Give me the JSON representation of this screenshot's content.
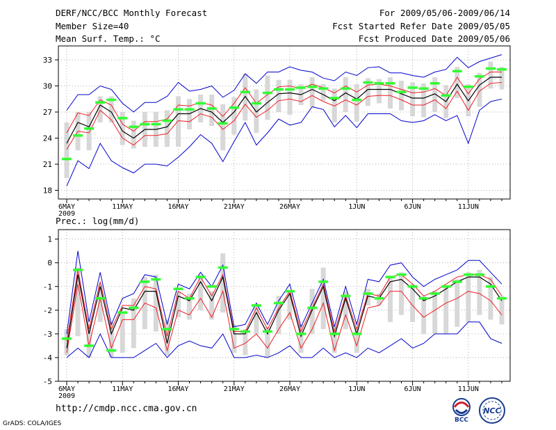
{
  "header": {
    "title": "DERF/NCC/BCC Monthly Forecast",
    "member_size": "Member Size=40",
    "variable": "Mean Surf. Temp.: °C",
    "forecast_period": "For 2009/05/06-2009/06/14",
    "started_refer": "Fcst Started Refer Date 2009/05/05",
    "produced": "Fcst Produced Date 2009/05/06"
  },
  "footer": {
    "url": "http://cmdp.ncc.cma.gov.cn",
    "credit": "GrADS: COLA/IGES",
    "logo_left_text": "BCC",
    "logo_right_text": "NCC"
  },
  "colors": {
    "ensemble_mean": "#000000",
    "spread_band": "#ee1c25",
    "envelope": "#0000cc",
    "member_box": "#d8d8d8",
    "marker": "#33ff33"
  },
  "chart_data": [
    {
      "type": "line",
      "title": "Mean Surf. Temp.: °C",
      "x_tick_labels": [
        "6MAY",
        "11MAY",
        "16MAY",
        "21MAY",
        "26MAY",
        "1JUN",
        "6JUN",
        "11JUN"
      ],
      "x_tick_index": [
        0,
        5,
        10,
        15,
        20,
        26,
        31,
        36
      ],
      "x_sublabel": "2009",
      "ylim": [
        17,
        34.6
      ],
      "yticks": [
        18,
        21,
        24,
        27,
        30,
        33
      ],
      "n": 40,
      "series": [
        {
          "name": "mean",
          "values": [
            23.4,
            25.8,
            25.3,
            27.8,
            27.0,
            24.8,
            24.0,
            25.0,
            25.0,
            25.3,
            26.8,
            26.8,
            27.4,
            27.0,
            25.8,
            27.0,
            28.8,
            27.0,
            28.1,
            29.1,
            29.2,
            29.0,
            29.6,
            29.0,
            28.3,
            29.2,
            28.5,
            29.6,
            29.6,
            29.6,
            29.1,
            28.6,
            28.6,
            29.1,
            28.2,
            30.2,
            28.3,
            30.1,
            31.0,
            31.0
          ]
        },
        {
          "name": "upper",
          "values": [
            24.6,
            26.9,
            26.6,
            28.4,
            27.8,
            25.6,
            24.8,
            25.9,
            25.9,
            26.2,
            27.8,
            27.7,
            28.1,
            27.8,
            26.5,
            28.0,
            29.8,
            28.0,
            29.0,
            29.9,
            30.0,
            29.7,
            30.2,
            29.8,
            29.2,
            30.0,
            29.3,
            30.1,
            30.2,
            30.0,
            29.6,
            29.2,
            29.3,
            29.7,
            28.9,
            31.0,
            29.1,
            30.8,
            31.6,
            31.6
          ]
        },
        {
          "name": "lower",
          "values": [
            22.7,
            24.8,
            24.6,
            27.2,
            26.1,
            24.0,
            23.2,
            24.3,
            24.3,
            24.5,
            26.0,
            25.9,
            26.8,
            26.4,
            25.0,
            26.0,
            27.9,
            26.4,
            27.2,
            28.3,
            28.5,
            28.2,
            28.9,
            28.2,
            27.7,
            28.4,
            27.8,
            28.8,
            28.9,
            28.9,
            28.4,
            27.8,
            27.8,
            28.4,
            27.4,
            29.4,
            27.2,
            29.4,
            30.3,
            30.4
          ]
        },
        {
          "name": "max",
          "values": [
            27.2,
            29.0,
            29.0,
            30.0,
            29.6,
            28.0,
            27.0,
            28.1,
            28.1,
            28.8,
            30.4,
            29.4,
            29.6,
            30.0,
            28.7,
            29.5,
            31.4,
            30.3,
            31.6,
            31.6,
            32.2,
            31.8,
            31.6,
            30.9,
            30.6,
            31.6,
            31.2,
            32.1,
            32.2,
            31.5,
            31.5,
            31.2,
            31.0,
            31.6,
            31.9,
            33.3,
            32.1,
            32.8,
            33.2,
            33.6
          ]
        },
        {
          "name": "min",
          "values": [
            18.5,
            21.4,
            20.5,
            23.4,
            21.4,
            20.6,
            20.0,
            21.0,
            21.0,
            20.8,
            21.8,
            23.0,
            24.4,
            23.4,
            21.3,
            23.6,
            25.8,
            23.2,
            24.6,
            26.2,
            25.5,
            25.8,
            27.6,
            27.3,
            25.3,
            26.6,
            25.2,
            26.8,
            26.8,
            26.8,
            26.0,
            25.8,
            26.0,
            26.7,
            26.0,
            26.6,
            23.4,
            27.2,
            28.2,
            28.5
          ]
        },
        {
          "name": "box_top",
          "values": [
            25.8,
            27.0,
            27.0,
            28.8,
            28.8,
            27.0,
            26.0,
            27.0,
            27.0,
            27.2,
            28.8,
            28.5,
            29.0,
            29.0,
            27.9,
            28.7,
            31.4,
            29.6,
            31.2,
            30.7,
            30.7,
            30.2,
            31.0,
            30.2,
            29.7,
            31.0,
            30.2,
            30.9,
            30.8,
            31.0,
            30.6,
            30.4,
            30.3,
            31.0,
            30.1,
            32.2,
            30.2,
            31.5,
            32.8,
            32.2
          ]
        },
        {
          "name": "box_bottom",
          "values": [
            19.4,
            22.6,
            22.6,
            25.8,
            25.8,
            23.2,
            22.8,
            23.0,
            23.0,
            23.0,
            23.0,
            25.0,
            25.8,
            25.4,
            22.6,
            24.4,
            26.0,
            24.6,
            26.1,
            27.0,
            26.7,
            27.8,
            27.6,
            28.3,
            25.8,
            27.0,
            25.9,
            27.7,
            28.0,
            27.4,
            27.2,
            26.5,
            26.4,
            27.0,
            26.3,
            28.6,
            26.5,
            27.6,
            29.7,
            29.6
          ]
        },
        {
          "name": "marker",
          "values": [
            21.6,
            24.3,
            25.1,
            28.1,
            28.4,
            26.3,
            25.3,
            25.6,
            25.6,
            26.0,
            27.3,
            27.3,
            28.0,
            27.4,
            25.7,
            27.5,
            29.3,
            28.0,
            29.2,
            29.6,
            29.6,
            29.8,
            29.9,
            29.7,
            28.6,
            29.7,
            28.4,
            30.4,
            30.3,
            30.3,
            29.3,
            29.8,
            29.7,
            30.3,
            28.9,
            31.7,
            29.9,
            31.1,
            32.0,
            31.9
          ]
        }
      ]
    },
    {
      "type": "line",
      "title": "Prec.: log(mm/d)",
      "x_tick_labels": [
        "6MAY",
        "11MAY",
        "16MAY",
        "21MAY",
        "26MAY",
        "1JUN",
        "6JUN",
        "11JUN"
      ],
      "x_tick_index": [
        0,
        5,
        10,
        15,
        20,
        26,
        31,
        36
      ],
      "x_sublabel": "2009",
      "ylim": [
        -5,
        1.4
      ],
      "yticks": [
        1,
        0,
        -1,
        -2,
        -3,
        -4,
        -5
      ],
      "n": 40,
      "series": [
        {
          "name": "mean",
          "values": [
            -3.6,
            -0.5,
            -3.0,
            -1.0,
            -3.0,
            -1.9,
            -2.0,
            -1.2,
            -1.2,
            -3.4,
            -1.4,
            -1.6,
            -0.8,
            -1.6,
            -0.6,
            -3.0,
            -3.0,
            -2.1,
            -3.0,
            -2.0,
            -1.3,
            -3.1,
            -2.0,
            -1.0,
            -3.1,
            -1.5,
            -3.0,
            -1.4,
            -1.5,
            -0.8,
            -0.7,
            -1.1,
            -1.6,
            -1.4,
            -1.1,
            -0.8,
            -0.6,
            -0.6,
            -0.9,
            -1.6
          ]
        },
        {
          "name": "upper",
          "values": [
            -3.3,
            -0.3,
            -2.8,
            -0.8,
            -2.8,
            -1.8,
            -1.8,
            -1.0,
            -1.1,
            -3.1,
            -1.2,
            -1.5,
            -0.6,
            -1.4,
            -0.5,
            -2.9,
            -2.9,
            -1.9,
            -2.8,
            -1.9,
            -1.2,
            -2.9,
            -1.9,
            -0.9,
            -2.9,
            -1.4,
            -2.8,
            -1.3,
            -1.4,
            -0.6,
            -0.5,
            -0.9,
            -1.4,
            -1.2,
            -0.9,
            -0.6,
            -0.5,
            -0.5,
            -0.7,
            -1.4
          ]
        },
        {
          "name": "lower",
          "values": [
            -3.8,
            -0.9,
            -3.5,
            -1.5,
            -3.6,
            -2.4,
            -2.4,
            -1.7,
            -1.9,
            -3.7,
            -2.0,
            -2.2,
            -1.5,
            -2.3,
            -1.2,
            -3.6,
            -3.4,
            -3.0,
            -3.6,
            -2.8,
            -2.1,
            -3.6,
            -2.8,
            -1.7,
            -3.7,
            -2.2,
            -3.5,
            -1.9,
            -1.8,
            -1.2,
            -1.2,
            -1.8,
            -2.3,
            -2.0,
            -1.7,
            -1.5,
            -1.2,
            -1.3,
            -1.6,
            -2.2
          ]
        },
        {
          "name": "max",
          "values": [
            -3.0,
            0.5,
            -2.5,
            -0.4,
            -2.6,
            -1.5,
            -1.3,
            -0.5,
            -0.6,
            -2.6,
            -0.9,
            -1.1,
            -0.4,
            -1.0,
            -0.1,
            -2.7,
            -2.6,
            -1.7,
            -2.6,
            -1.6,
            -0.9,
            -2.7,
            -1.7,
            -0.7,
            -2.7,
            -1.0,
            -2.6,
            -0.7,
            -0.8,
            -0.1,
            0.0,
            -0.6,
            -1.0,
            -0.7,
            -0.5,
            -0.3,
            0.1,
            0.1,
            -0.4,
            -0.9
          ]
        },
        {
          "name": "min",
          "values": [
            -4.0,
            -3.6,
            -4.0,
            -3.0,
            -4.0,
            -4.0,
            -4.0,
            -3.7,
            -3.4,
            -4.0,
            -3.5,
            -3.3,
            -3.5,
            -3.6,
            -3.0,
            -4.0,
            -4.0,
            -3.9,
            -4.0,
            -3.8,
            -3.5,
            -4.0,
            -4.0,
            -3.6,
            -4.0,
            -3.8,
            -4.0,
            -3.6,
            -3.8,
            -3.5,
            -3.2,
            -3.6,
            -3.4,
            -3.0,
            -3.0,
            -3.0,
            -2.5,
            -2.5,
            -3.2,
            -3.4
          ]
        },
        {
          "name": "box_top",
          "values": [
            -2.8,
            -0.2,
            -2.6,
            -0.9,
            -2.5,
            -2.1,
            -1.5,
            -0.6,
            -0.5,
            -2.4,
            -1.2,
            -1.3,
            -0.5,
            -1.2,
            0.4,
            -2.6,
            -2.8,
            -1.8,
            -2.7,
            -1.4,
            -1.2,
            -2.6,
            -1.1,
            -0.2,
            -2.7,
            -1.2,
            -2.7,
            -1.1,
            -1.3,
            -0.6,
            -0.4,
            -0.9,
            -1.4,
            -1.2,
            -1.0,
            -0.7,
            -0.4,
            -0.3,
            -0.6,
            -1.4
          ]
        },
        {
          "name": "box_bottom",
          "values": [
            -3.9,
            -3.1,
            -4.0,
            -2.5,
            -4.0,
            -3.8,
            -3.6,
            -2.8,
            -2.9,
            -3.9,
            -2.3,
            -2.4,
            -2.0,
            -2.4,
            -2.1,
            -3.8,
            -3.9,
            -3.0,
            -4.0,
            -3.0,
            -2.4,
            -3.8,
            -3.0,
            -2.8,
            -3.8,
            -2.8,
            -3.8,
            -1.8,
            -1.8,
            -2.5,
            -2.2,
            -2.5,
            -3.0,
            -3.0,
            -3.0,
            -2.7,
            -2.5,
            -2.2,
            -2.4,
            -2.6
          ]
        },
        {
          "name": "marker",
          "values": [
            -3.2,
            -0.3,
            -3.5,
            -1.5,
            -3.7,
            -2.1,
            -1.9,
            -0.8,
            -0.7,
            -2.8,
            -1.1,
            -1.5,
            -0.6,
            -1.0,
            -0.2,
            -2.8,
            -2.9,
            -1.8,
            -2.9,
            -1.7,
            -1.2,
            -3.0,
            -1.9,
            -0.8,
            -3.0,
            -1.4,
            -3.0,
            -1.3,
            -1.5,
            -0.6,
            -0.5,
            -1.0,
            -1.5,
            -1.3,
            -1.0,
            -0.8,
            -0.5,
            -0.5,
            -1.0,
            -1.5
          ]
        }
      ]
    }
  ]
}
